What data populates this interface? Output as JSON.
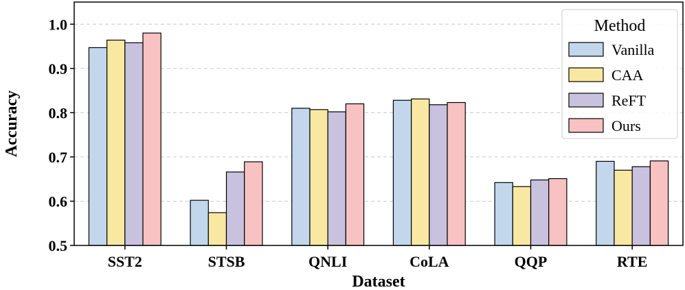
{
  "chart_data": {
    "type": "bar",
    "title": "",
    "xlabel": "Dataset",
    "ylabel": "Accuracy",
    "ylim": [
      0.5,
      1.05
    ],
    "yticks": [
      0.5,
      0.6,
      0.7,
      0.8,
      0.9,
      1.0
    ],
    "ytick_labels": [
      "0.5",
      "0.6",
      "0.7",
      "0.8",
      "0.9",
      "1.0"
    ],
    "grid": "horizontal dashed",
    "legend": {
      "title": "Method",
      "placement": "top-right"
    },
    "categories": [
      "SST2",
      "STSB",
      "QNLI",
      "CoLA",
      "QQP",
      "RTE"
    ],
    "series": [
      {
        "name": "Vanilla",
        "color": "#c2d7ec",
        "values": [
          0.947,
          0.602,
          0.81,
          0.828,
          0.642,
          0.69
        ]
      },
      {
        "name": "CAA",
        "color": "#f8e8a2",
        "values": [
          0.964,
          0.574,
          0.807,
          0.831,
          0.633,
          0.67
        ]
      },
      {
        "name": "ReFT",
        "color": "#c8c2df",
        "values": [
          0.958,
          0.666,
          0.802,
          0.818,
          0.648,
          0.678
        ]
      },
      {
        "name": "Ours",
        "color": "#f8c2c2",
        "values": [
          0.98,
          0.689,
          0.82,
          0.823,
          0.651,
          0.691
        ]
      }
    ]
  }
}
